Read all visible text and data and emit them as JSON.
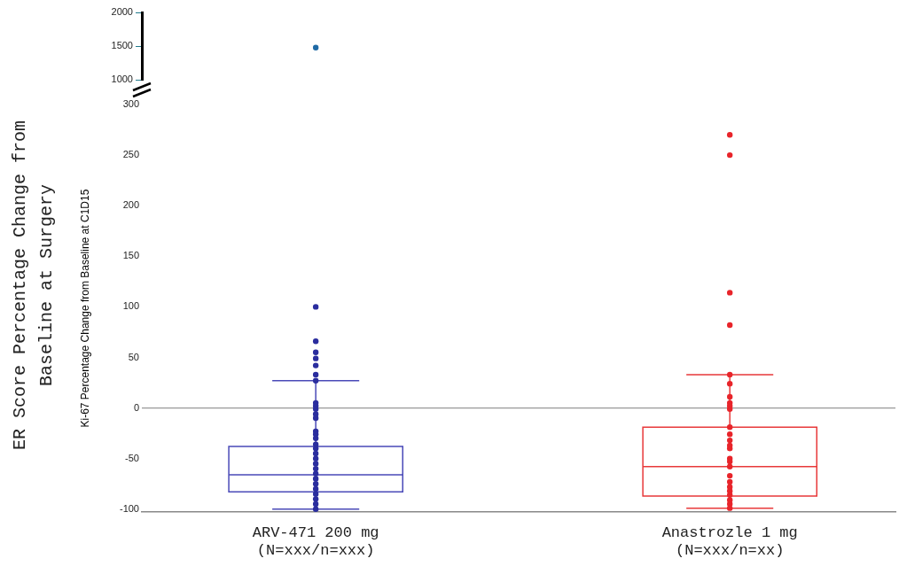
{
  "chart_data": [
    {
      "type": "scatter",
      "categories": [
        "ARV-471 200 mg\n(N=xxx/n=xxx)",
        "Anastrozle 1 mg\n(N=xxx/n=xx)"
      ],
      "series": [
        {
          "color": "#1f6aa5",
          "x": [
            "ARV-471 200 mg\n(N=xxx/n=xxx)"
          ],
          "values": [
            1480
          ]
        }
      ],
      "ylim": [
        1000,
        2000
      ],
      "yticks": [
        1000,
        1500,
        2000
      ],
      "tick_labels": "y",
      "grid": false,
      "legend": false,
      "marker": "circle"
    },
    {
      "type": "box",
      "categories": [
        "ARV-471 200 mg\n(N=xxx/n=xxx)",
        "Anastrozle 1 mg\n(N=xxx/n=xx)"
      ],
      "ylabel": "Ki-67 Percentage Change from Baseline at C1D15",
      "annotations": [
        "ER Score  Percentage Change from Baseline at Surgery"
      ],
      "boxes": [
        {
          "low": -100,
          "q1": -83,
          "median": -66,
          "q3": -38,
          "high": 27
        },
        {
          "low": -99,
          "q1": -87,
          "median": -58,
          "q3": -19,
          "high": 33
        }
      ],
      "colors": [
        "#4a4ab8",
        "#e8393a"
      ],
      "series": [
        {
          "type": "scatter",
          "color": "#2a2d9e",
          "x": [
            "ARV-471 200 mg\n(N=xxx/n=xxx)",
            "ARV-471 200 mg\n(N=xxx/n=xxx)",
            "ARV-471 200 mg\n(N=xxx/n=xxx)",
            "ARV-471 200 mg\n(N=xxx/n=xxx)",
            "ARV-471 200 mg\n(N=xxx/n=xxx)",
            "ARV-471 200 mg\n(N=xxx/n=xxx)",
            "ARV-471 200 mg\n(N=xxx/n=xxx)",
            "ARV-471 200 mg\n(N=xxx/n=xxx)",
            "ARV-471 200 mg\n(N=xxx/n=xxx)",
            "ARV-471 200 mg\n(N=xxx/n=xxx)",
            "ARV-471 200 mg\n(N=xxx/n=xxx)",
            "ARV-471 200 mg\n(N=xxx/n=xxx)",
            "ARV-471 200 mg\n(N=xxx/n=xxx)",
            "ARV-471 200 mg\n(N=xxx/n=xxx)",
            "ARV-471 200 mg\n(N=xxx/n=xxx)",
            "ARV-471 200 mg\n(N=xxx/n=xxx)",
            "ARV-471 200 mg\n(N=xxx/n=xxx)",
            "ARV-471 200 mg\n(N=xxx/n=xxx)",
            "ARV-471 200 mg\n(N=xxx/n=xxx)",
            "ARV-471 200 mg\n(N=xxx/n=xxx)",
            "ARV-471 200 mg\n(N=xxx/n=xxx)",
            "ARV-471 200 mg\n(N=xxx/n=xxx)",
            "ARV-471 200 mg\n(N=xxx/n=xxx)",
            "ARV-471 200 mg\n(N=xxx/n=xxx)",
            "ARV-471 200 mg\n(N=xxx/n=xxx)",
            "ARV-471 200 mg\n(N=xxx/n=xxx)",
            "ARV-471 200 mg\n(N=xxx/n=xxx)",
            "ARV-471 200 mg\n(N=xxx/n=xxx)",
            "ARV-471 200 mg\n(N=xxx/n=xxx)"
          ],
          "values": [
            100,
            66,
            55,
            49,
            42,
            33,
            27,
            5,
            2,
            -1,
            -6,
            -10,
            -23,
            -26,
            -30,
            -36,
            -40,
            -45,
            -50,
            -55,
            -60,
            -65,
            -70,
            -75,
            -80,
            -85,
            -90,
            -95,
            -100
          ]
        },
        {
          "type": "scatter",
          "color": "#e8242a",
          "x": [
            "Anastrozle 1 mg\n(N=xxx/n=xx)",
            "Anastrozle 1 mg\n(N=xxx/n=xx)",
            "Anastrozle 1 mg\n(N=xxx/n=xx)",
            "Anastrozle 1 mg\n(N=xxx/n=xx)",
            "Anastrozle 1 mg\n(N=xxx/n=xx)",
            "Anastrozle 1 mg\n(N=xxx/n=xx)",
            "Anastrozle 1 mg\n(N=xxx/n=xx)",
            "Anastrozle 1 mg\n(N=xxx/n=xx)",
            "Anastrozle 1 mg\n(N=xxx/n=xx)",
            "Anastrozle 1 mg\n(N=xxx/n=xx)",
            "Anastrozle 1 mg\n(N=xxx/n=xx)",
            "Anastrozle 1 mg\n(N=xxx/n=xx)",
            "Anastrozle 1 mg\n(N=xxx/n=xx)",
            "Anastrozle 1 mg\n(N=xxx/n=xx)",
            "Anastrozle 1 mg\n(N=xxx/n=xx)",
            "Anastrozle 1 mg\n(N=xxx/n=xx)",
            "Anastrozle 1 mg\n(N=xxx/n=xx)",
            "Anastrozle 1 mg\n(N=xxx/n=xx)",
            "Anastrozle 1 mg\n(N=xxx/n=xx)",
            "Anastrozle 1 mg\n(N=xxx/n=xx)",
            "Anastrozle 1 mg\n(N=xxx/n=xx)",
            "Anastrozle 1 mg\n(N=xxx/n=xx)",
            "Anastrozle 1 mg\n(N=xxx/n=xx)",
            "Anastrozle 1 mg\n(N=xxx/n=xx)",
            "Anastrozle 1 mg\n(N=xxx/n=xx)",
            "Anastrozle 1 mg\n(N=xxx/n=xx)"
          ],
          "values": [
            270,
            250,
            114,
            82,
            33,
            24,
            11,
            5,
            2,
            -1,
            -19,
            -26,
            -32,
            -37,
            -40,
            -50,
            -53,
            -58,
            -67,
            -73,
            -78,
            -82,
            -86,
            -91,
            -95,
            -99
          ]
        }
      ],
      "ref_lines": [
        {
          "axis": "y",
          "value": 0,
          "color": "#999999"
        }
      ],
      "ylim": [
        -103,
        300
      ],
      "yticks": [
        -100,
        -50,
        0,
        50,
        100,
        150,
        200,
        250,
        300
      ],
      "grid": false,
      "legend": false,
      "marker": "circle"
    }
  ]
}
